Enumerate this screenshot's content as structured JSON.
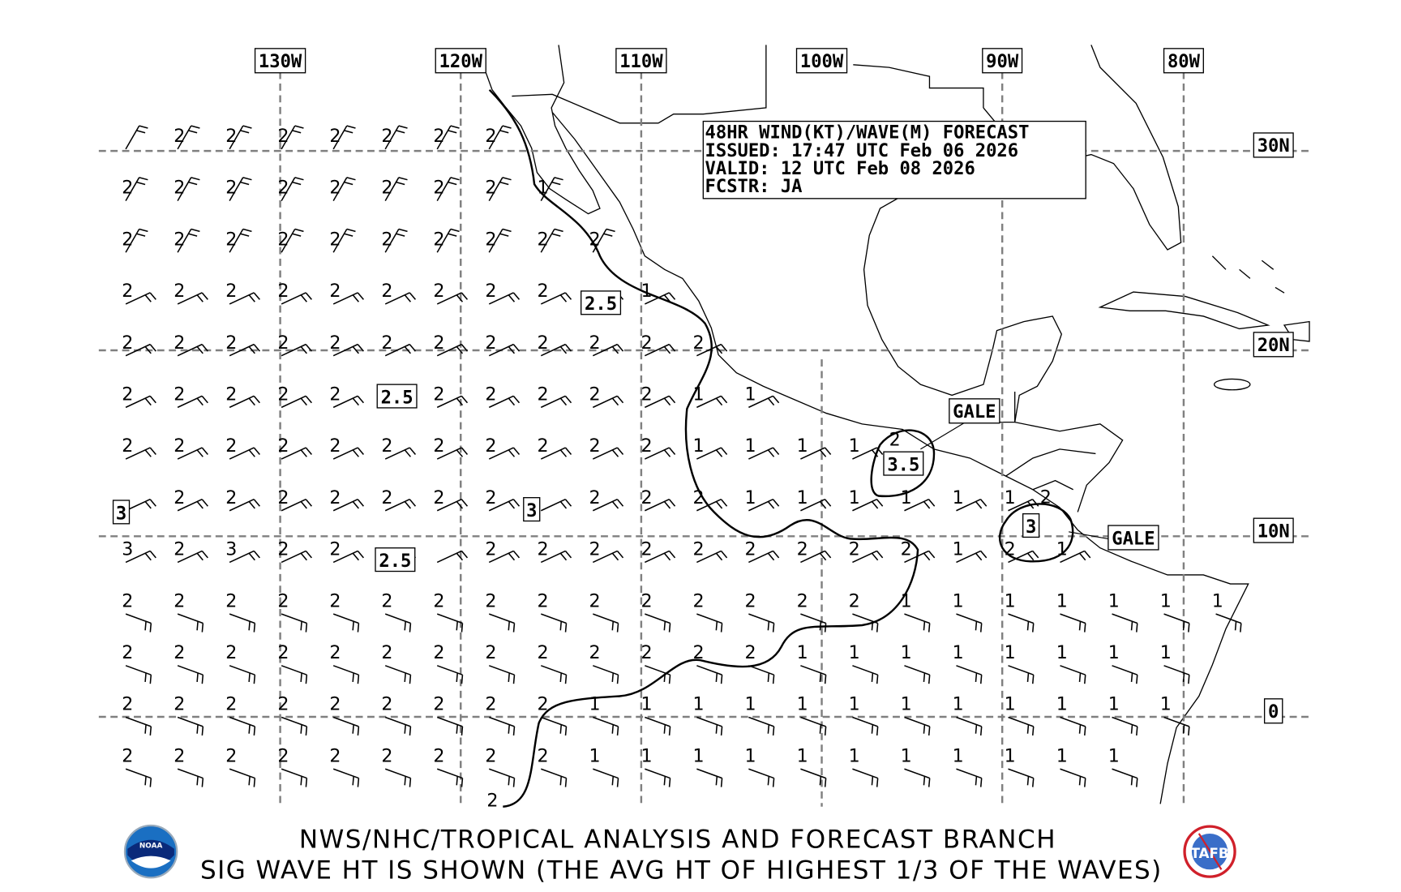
{
  "header": {
    "line1": "48HR WIND(KT)/WAVE(M) FORECAST",
    "line2": "ISSUED: 17:47 UTC Feb 06 2026",
    "line3": "VALID: 12 UTC Feb 08 2026",
    "line4": "FCSTR: JA"
  },
  "longitude_labels": [
    "130W",
    "120W",
    "110W",
    "100W",
    "90W",
    "80W"
  ],
  "latitude_labels": [
    "30N",
    "20N",
    "10N",
    "0"
  ],
  "contour_labels": [
    "2.5",
    "2.5",
    "2.5",
    "3",
    "3",
    "3.5",
    "3"
  ],
  "warnings": [
    "GALE",
    "GALE"
  ],
  "wave_grid": [
    [
      "",
      "2",
      "2",
      "2",
      "2",
      "2",
      "2",
      "2"
    ],
    [
      "2",
      "2",
      "2",
      "2",
      "2",
      "2",
      "2",
      "2",
      "1"
    ],
    [
      "2",
      "2",
      "2",
      "2",
      "2",
      "2",
      "2",
      "2",
      "2",
      "2"
    ],
    [
      "2",
      "2",
      "2",
      "2",
      "2",
      "2",
      "2",
      "2",
      "2",
      "",
      "1"
    ],
    [
      "2",
      "2",
      "2",
      "2",
      "2",
      "2",
      "2",
      "2",
      "2",
      "2",
      "2",
      "2"
    ],
    [
      "2",
      "2",
      "2",
      "2",
      "2",
      "",
      "2",
      "2",
      "2",
      "2",
      "2",
      "1",
      "1"
    ],
    [
      "2",
      "2",
      "2",
      "2",
      "2",
      "2",
      "2",
      "2",
      "2",
      "2",
      "2",
      "1",
      "1",
      "1",
      "1"
    ],
    [
      "",
      "2",
      "2",
      "2",
      "2",
      "2",
      "2",
      "2",
      "",
      "2",
      "2",
      "2",
      "1",
      "1",
      "1",
      "1",
      "1",
      "1"
    ],
    [
      "3",
      "2",
      "3",
      "2",
      "2",
      "",
      "",
      "2",
      "2",
      "2",
      "2",
      "2",
      "2",
      "2",
      "2",
      "2",
      "1",
      "2",
      "1"
    ],
    [
      "2",
      "2",
      "2",
      "2",
      "2",
      "2",
      "2",
      "2",
      "2",
      "2",
      "2",
      "2",
      "2",
      "2",
      "2",
      "1",
      "1",
      "1",
      "1",
      "1",
      "1",
      "1"
    ],
    [
      "2",
      "2",
      "2",
      "2",
      "2",
      "2",
      "2",
      "2",
      "2",
      "2",
      "2",
      "2",
      "2",
      "1",
      "1",
      "1",
      "1",
      "1",
      "1",
      "1",
      "1"
    ],
    [
      "2",
      "2",
      "2",
      "2",
      "2",
      "2",
      "2",
      "2",
      "2",
      "1",
      "1",
      "1",
      "1",
      "1",
      "1",
      "1",
      "1",
      "1",
      "1",
      "1",
      "1"
    ],
    [
      "2",
      "2",
      "2",
      "2",
      "2",
      "2",
      "2",
      "2",
      "2",
      "1",
      "1",
      "1",
      "1",
      "1",
      "1",
      "1",
      "1",
      "1",
      "1",
      "1"
    ]
  ],
  "extra_wave_values": [
    "2",
    "2",
    "2"
  ],
  "footer": {
    "line1": "NWS/NHC/TROPICAL ANALYSIS AND FORECAST BRANCH",
    "line2": "SIG WAVE HT IS SHOWN (THE AVG HT OF HIGHEST 1/3 OF THE WAVES)"
  },
  "logos": {
    "left": "NOAA",
    "right": "TAFB"
  },
  "colors": {
    "grid": "#808080",
    "noaa_blue": "#1a6fc2",
    "tafb_red": "#d0202a"
  }
}
